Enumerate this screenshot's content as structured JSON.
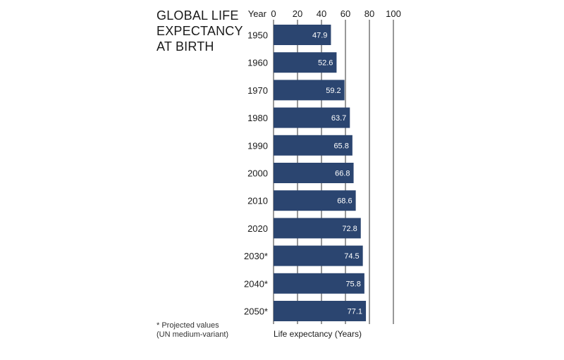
{
  "colors": {
    "bar": "#2b4570",
    "gridline": "#555555",
    "value_text": "#ffffff"
  },
  "chart_data": {
    "type": "bar",
    "orientation": "horizontal",
    "title_lines": [
      "GLOBAL LIFE",
      "EXPECTANCY",
      "AT BIRTH"
    ],
    "category_header": "Year",
    "categories": [
      "1950",
      "1960",
      "1970",
      "1980",
      "1990",
      "2000",
      "2010",
      "2020",
      "2030*",
      "2040*",
      "2050*"
    ],
    "values": [
      47.9,
      52.6,
      59.2,
      63.7,
      65.8,
      66.8,
      68.6,
      72.8,
      74.5,
      75.8,
      77.1
    ],
    "value_labels": [
      "47.9",
      "52.6",
      "59.2",
      "63.7",
      "65.8",
      "66.8",
      "68.6",
      "72.8",
      "74.5",
      "75.8",
      "77.1"
    ],
    "xlabel": "Life expectancy (Years)",
    "xlim": [
      0,
      100
    ],
    "xticks": [
      0,
      20,
      40,
      60,
      80,
      100
    ],
    "grid": true,
    "footnote_lines": [
      "* Projected values",
      "(UN medium-variant)"
    ]
  }
}
